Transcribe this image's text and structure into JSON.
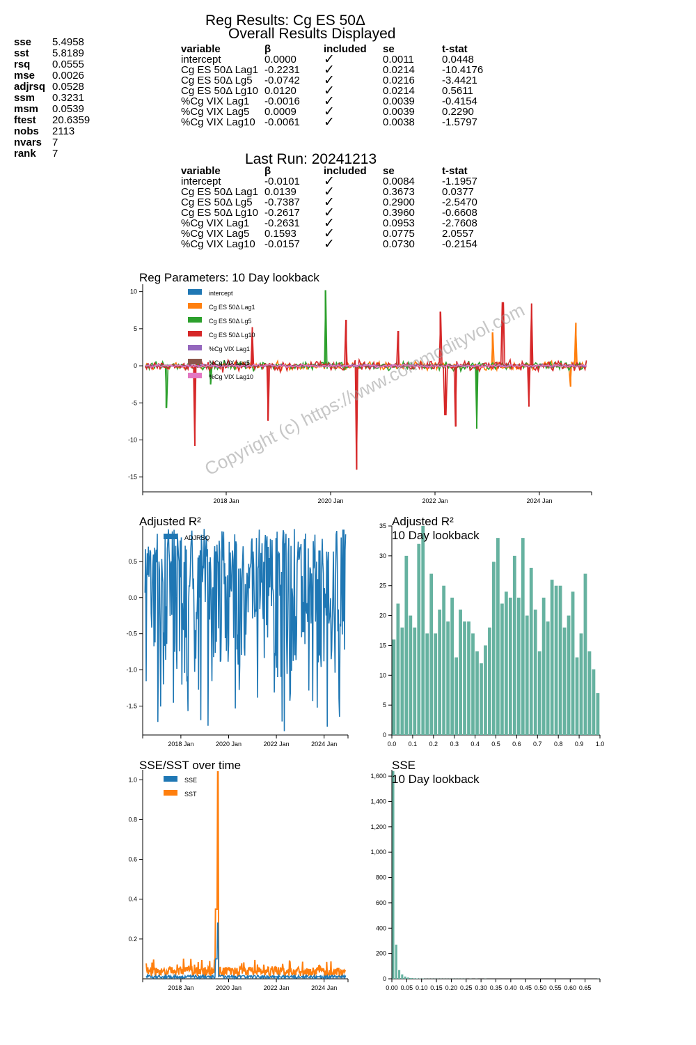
{
  "header": {
    "title": "Reg Results: Cg ES 50Δ",
    "overall_subtitle": "Overall Results Displayed",
    "last_run_title": "Last Run: 20241213"
  },
  "stats": [
    {
      "k": "sse",
      "v": "5.4958"
    },
    {
      "k": "sst",
      "v": "5.8189"
    },
    {
      "k": "rsq",
      "v": "0.0555"
    },
    {
      "k": "mse",
      "v": "0.0026"
    },
    {
      "k": "adjrsq",
      "v": "0.0528"
    },
    {
      "k": "ssm",
      "v": "0.3231"
    },
    {
      "k": "msm",
      "v": "0.0539"
    },
    {
      "k": "ftest",
      "v": "20.6359"
    },
    {
      "k": "nobs",
      "v": "2113"
    },
    {
      "k": "nvars",
      "v": "7"
    },
    {
      "k": "rank",
      "v": "7"
    }
  ],
  "table_headers": [
    "variable",
    "β",
    "included",
    "se",
    "t-stat"
  ],
  "overall_rows": [
    [
      "intercept",
      "0.0000",
      "✓",
      "0.0011",
      "0.0448"
    ],
    [
      "Cg ES 50Δ Lag1",
      "-0.2231",
      "✓",
      "0.0214",
      "-10.4176"
    ],
    [
      "Cg ES 50Δ Lg5",
      "-0.0742",
      "✓",
      "0.0216",
      "-3.4421"
    ],
    [
      "Cg ES 50Δ Lg10",
      "0.0120",
      "✓",
      "0.0214",
      "0.5611"
    ],
    [
      "%Cg VIX Lag1",
      "-0.0016",
      "✓",
      "0.0039",
      "-0.4154"
    ],
    [
      "%Cg VIX Lag5",
      "0.0009",
      "✓",
      "0.0039",
      "0.2290"
    ],
    [
      "%Cg VIX Lag10",
      "-0.0061",
      "✓",
      "0.0038",
      "-1.5797"
    ]
  ],
  "last_rows": [
    [
      "intercept",
      "-0.0101",
      "✓",
      "0.0084",
      "-1.1957"
    ],
    [
      "Cg ES 50Δ Lag1",
      "0.0139",
      "✓",
      "0.3673",
      "0.0377"
    ],
    [
      "Cg ES 50Δ Lg5",
      "-0.7387",
      "✓",
      "0.2900",
      "-2.5470"
    ],
    [
      "Cg ES 50Δ Lg10",
      "-0.2617",
      "✓",
      "0.3960",
      "-0.6608"
    ],
    [
      "%Cg VIX Lag1",
      "-0.2631",
      "✓",
      "0.0953",
      "-2.7608"
    ],
    [
      "%Cg VIX Lag5",
      "0.1593",
      "✓",
      "0.0775",
      "2.0557"
    ],
    [
      "%Cg VIX Lag10",
      "-0.0157",
      "✓",
      "0.0730",
      "-0.2154"
    ]
  ],
  "watermark": "Copyright (c) https://www.commodityvol.com",
  "chart_data": [
    {
      "type": "line",
      "title": "Reg Parameters: 10 Day lookback",
      "ylim": [
        -17,
        11
      ],
      "yticks": [
        10,
        5,
        0,
        -5,
        -10,
        -15
      ],
      "xlim": [
        2016.4,
        2025.0
      ],
      "xticks": [
        {
          "v": 2018.0,
          "label": "2018 Jan"
        },
        {
          "v": 2020.0,
          "label": "2020 Jan"
        },
        {
          "v": 2022.0,
          "label": "2022 Jan"
        },
        {
          "v": 2024.0,
          "label": "2024 Jan"
        }
      ],
      "series": [
        {
          "name": "intercept",
          "color": "#1f77b4",
          "amp": 0.15,
          "spikes": []
        },
        {
          "name": "Cg ES 50Δ Lag1",
          "color": "#ff7f0e",
          "amp": 0.8,
          "spikes": [
            [
              2023.1,
              4.5
            ],
            [
              2024.7,
              5.8
            ],
            [
              2024.6,
              -2.8
            ]
          ]
        },
        {
          "name": "Cg ES 50Δ Lg5",
          "color": "#2ca02c",
          "amp": 0.9,
          "spikes": [
            [
              2016.85,
              -5.7
            ],
            [
              2019.9,
              10.2
            ],
            [
              2022.8,
              -8.5
            ],
            [
              2017.7,
              -2.5
            ]
          ]
        },
        {
          "name": "Cg ES 50Δ Lg10",
          "color": "#d62728",
          "amp": 1.0,
          "spikes": [
            [
              2017.4,
              -10.8
            ],
            [
              2018.8,
              -7.4
            ],
            [
              2018.5,
              5.2
            ],
            [
              2020.5,
              -14.0
            ],
            [
              2020.3,
              6.2
            ],
            [
              2021.3,
              4.7
            ],
            [
              2022.2,
              -6.6
            ],
            [
              2022.4,
              -8.2
            ],
            [
              2022.1,
              7.3
            ],
            [
              2023.3,
              8.5
            ],
            [
              2023.8,
              -5.5
            ],
            [
              2023.85,
              8.4
            ]
          ]
        },
        {
          "name": "%Cg VIX Lag1",
          "color": "#9467bd",
          "amp": 0.25,
          "spikes": []
        },
        {
          "name": "%Cg VIX Lag5",
          "color": "#8c564b",
          "amp": 0.25,
          "spikes": []
        },
        {
          "name": "%Cg VIX Lag10",
          "color": "#e377c2",
          "amp": 0.3,
          "spikes": []
        }
      ]
    },
    {
      "type": "line",
      "title": "Adjusted R²",
      "ylim": [
        -1.9,
        0.99
      ],
      "yticks": [
        0.5,
        0.0,
        -0.5,
        -1.0,
        -1.5
      ],
      "xlim": [
        2016.4,
        2025.0
      ],
      "xticks": [
        {
          "v": 2018.0,
          "label": "2018 Jan"
        },
        {
          "v": 2020.0,
          "label": "2020 Jan"
        },
        {
          "v": 2022.0,
          "label": "2022 Jan"
        },
        {
          "v": 2024.0,
          "label": "2024 Jan"
        }
      ],
      "series": [
        {
          "name": "ADJRSQ",
          "color": "#1f77b4"
        }
      ]
    },
    {
      "type": "bar",
      "title": "Adjusted R²",
      "subtitle": "10 Day lookback",
      "bin_start": 0.0,
      "bin_width": 0.02,
      "values": [
        16,
        22,
        18,
        30,
        20,
        18,
        32,
        35,
        17,
        27,
        17,
        21,
        25,
        19,
        23,
        13,
        21,
        19,
        19,
        17,
        14,
        12,
        15,
        18,
        29,
        33,
        22,
        24,
        23,
        30,
        23,
        33,
        20,
        28,
        21,
        14,
        23,
        19,
        26,
        25,
        25,
        18,
        20,
        24,
        13,
        17,
        27,
        14,
        11,
        7
      ],
      "xlim": [
        0.0,
        1.0
      ],
      "ylim": [
        0,
        35
      ],
      "yticks": [
        0,
        5,
        10,
        15,
        20,
        25,
        30,
        35
      ],
      "xticks": [
        0.0,
        0.1,
        0.2,
        0.3,
        0.4,
        0.5,
        0.6,
        0.7,
        0.8,
        0.9,
        1.0
      ]
    },
    {
      "type": "line",
      "title": "SSE/SST over time",
      "ylim": [
        0,
        1.05
      ],
      "yticks": [
        1.0,
        0.8,
        0.6,
        0.4,
        0.2
      ],
      "xlim": [
        2016.4,
        2025.0
      ],
      "xticks": [
        {
          "v": 2018.0,
          "label": "2018 Jan"
        },
        {
          "v": 2020.0,
          "label": "2020 Jan"
        },
        {
          "v": 2022.0,
          "label": "2022 Jan"
        },
        {
          "v": 2024.0,
          "label": "2024 Jan"
        }
      ],
      "series": [
        {
          "name": "SSE",
          "color": "#1f77b4"
        },
        {
          "name": "SST",
          "color": "#ff7f0e"
        }
      ]
    },
    {
      "type": "bar",
      "title": "SSE",
      "subtitle": "10 Day lookback",
      "bin_start": 0.0,
      "bin_width": 0.01,
      "values": [
        1640,
        270,
        70,
        35,
        18,
        10,
        6,
        4,
        3,
        2,
        2,
        1,
        1,
        1,
        1,
        1,
        1,
        1,
        1,
        1,
        1,
        1,
        1,
        1,
        1,
        0,
        1,
        0,
        1,
        0,
        0,
        1,
        0,
        0,
        0,
        0,
        0,
        0,
        0,
        0,
        0,
        0,
        0,
        0,
        0,
        0,
        0,
        0,
        0,
        0,
        0,
        0,
        0,
        0,
        0,
        0,
        0,
        0,
        0,
        0,
        0,
        0,
        0,
        0,
        0,
        0,
        0,
        0,
        0,
        1
      ],
      "xlim": [
        0.0,
        0.7
      ],
      "ylim": [
        0,
        1650
      ],
      "yticks": [
        0,
        200,
        400,
        600,
        800,
        1000,
        1200,
        1400,
        1600
      ],
      "ytick_labels": [
        "0",
        "200",
        "400",
        "600",
        "800",
        "1,000",
        "1,200",
        "1,400",
        "1,600"
      ],
      "xticks": [
        0.0,
        0.05,
        0.1,
        0.15,
        0.2,
        0.25,
        0.3,
        0.35,
        0.4,
        0.45,
        0.5,
        0.55,
        0.6,
        0.65
      ],
      "xtick_labels": [
        "0.00",
        "0.05",
        "0.10",
        "0.15",
        "0.20",
        "0.25",
        "0.30",
        "0.35",
        "0.40",
        "0.45",
        "0.50",
        "0.55",
        "0.60",
        "0.65"
      ]
    }
  ]
}
